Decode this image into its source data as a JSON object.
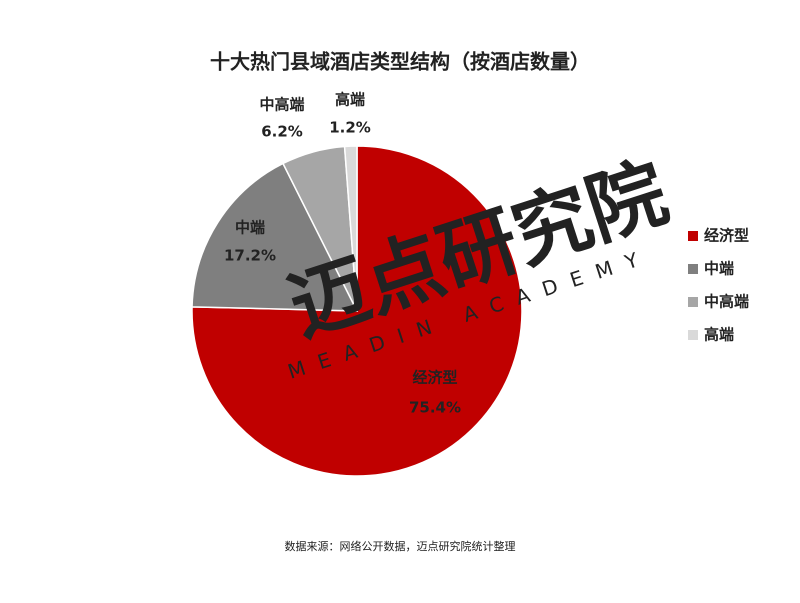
{
  "chart_data": {
    "type": "pie",
    "title": "十大热门县域酒店类型结构（按酒店数量）",
    "categories": [
      "经济型",
      "中端",
      "中高端",
      "高端"
    ],
    "values": [
      75.4,
      17.2,
      6.2,
      1.2
    ],
    "value_labels": [
      "75.4%",
      "17.2%",
      "6.2%",
      "1.2%"
    ],
    "colors": [
      "#c00000",
      "#7f7f7f",
      "#a6a6a6",
      "#d9d9d9"
    ],
    "legend": "right",
    "source": "数据来源：网络公开数据，迈点研究院统计整理",
    "watermark": [
      "迈点研究院",
      "MEADIN ACADEMY"
    ]
  }
}
